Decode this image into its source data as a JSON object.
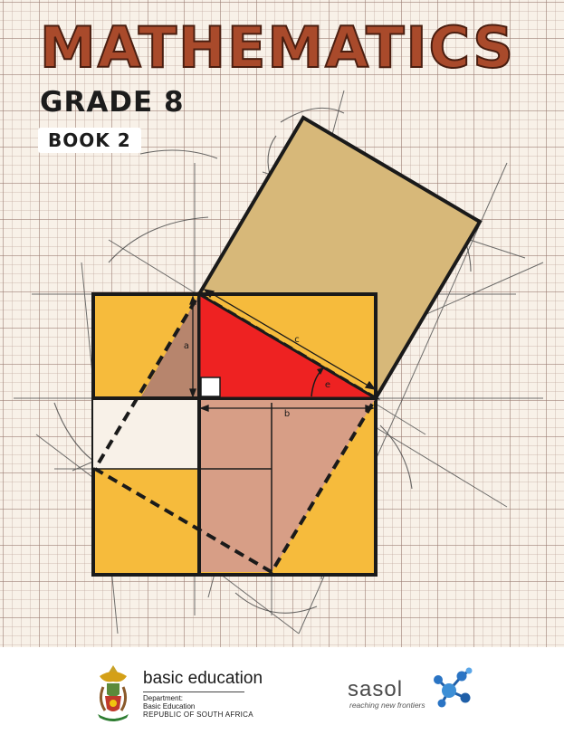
{
  "cover": {
    "title": "MATHEMATICS",
    "grade": "GRADE 8",
    "book": "BOOK 2"
  },
  "diagram": {
    "labels": {
      "a": "a",
      "b": "b",
      "c": "c",
      "theta": "e"
    },
    "colors": {
      "hypotenuse_square": "#d7b879",
      "outer_square": "#f6bb3c",
      "triangle": "#ee2222",
      "inner_square": "#d79e86",
      "small_triangle": "#b7856d",
      "outline": "#1a1a1a"
    }
  },
  "footer": {
    "department": {
      "name": "basic education",
      "line1": "Department:",
      "line2": "Basic Education",
      "line3": "REPUBLIC OF SOUTH AFRICA",
      "emblem": "coat-of-arms-icon"
    },
    "sponsor": {
      "name": "sasol",
      "tagline": "reaching new frontiers",
      "emblem": "molecule-icon"
    }
  }
}
